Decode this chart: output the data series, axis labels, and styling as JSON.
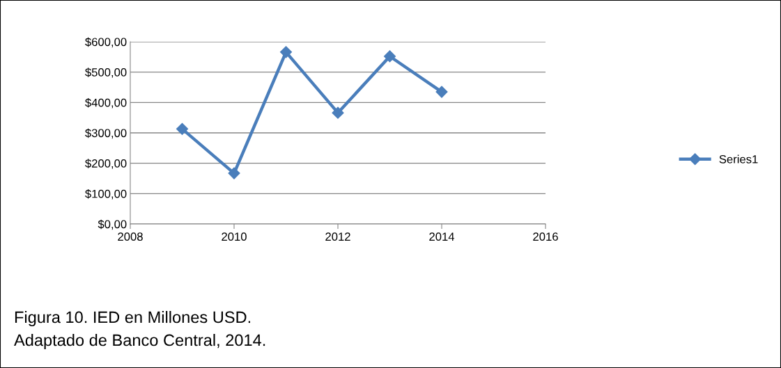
{
  "chart_data": {
    "type": "line",
    "x": [
      2009,
      2010,
      2011,
      2012,
      2013,
      2014
    ],
    "series": [
      {
        "name": "Series1",
        "color": "#4a7ebb",
        "values": [
          313,
          167,
          566,
          366,
          552,
          435
        ]
      }
    ],
    "xlim": [
      2008,
      2016
    ],
    "xticks": [
      2008,
      2010,
      2012,
      2014,
      2016
    ],
    "ylim": [
      0,
      600
    ],
    "yticks": [
      {
        "value": 0,
        "label": "$0,00"
      },
      {
        "value": 100,
        "label": "$100,00"
      },
      {
        "value": 200,
        "label": "$200,00"
      },
      {
        "value": 300,
        "label": "$300,00"
      },
      {
        "value": 400,
        "label": "$400,00"
      },
      {
        "value": 500,
        "label": "$500,00"
      },
      {
        "value": 600,
        "label": "$600,00"
      }
    ],
    "grid": "y",
    "legend": "right",
    "marker": "diamond",
    "line_style": "solid",
    "annotations": [
      "Figura 10. IED en Millones USD.",
      "Adaptado de Banco Central, 2014."
    ]
  }
}
